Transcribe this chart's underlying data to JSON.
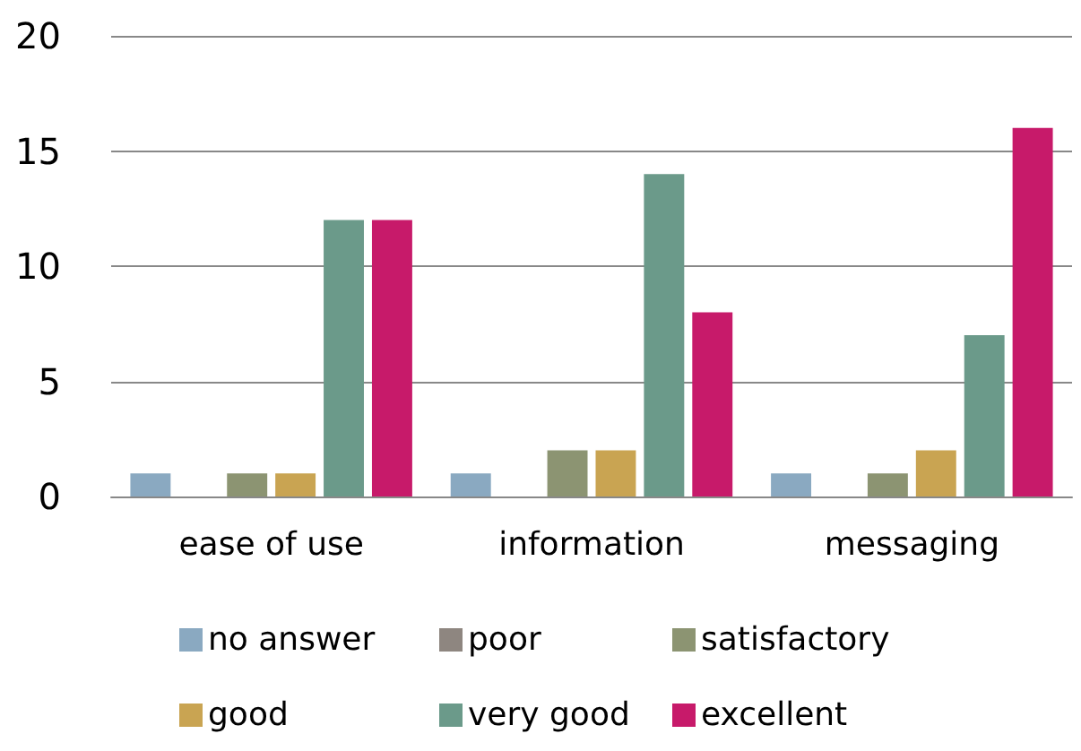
{
  "chart_data": {
    "type": "bar",
    "categories": [
      "ease of use",
      "information",
      "messaging"
    ],
    "series": [
      {
        "name": "no answer",
        "color": "#8aa9c1",
        "values": [
          1,
          1,
          1
        ]
      },
      {
        "name": "poor",
        "color": "#8e8680",
        "values": [
          0,
          0,
          0
        ]
      },
      {
        "name": "satisfactory",
        "color": "#8c9472",
        "values": [
          1,
          2,
          1
        ]
      },
      {
        "name": "good",
        "color": "#c9a452",
        "values": [
          1,
          2,
          2
        ]
      },
      {
        "name": "very good",
        "color": "#6b9a8a",
        "values": [
          12,
          14,
          7
        ]
      },
      {
        "name": "excellent",
        "color": "#c71a6a",
        "values": [
          12,
          8,
          16
        ]
      }
    ],
    "ylim": [
      0,
      20
    ],
    "yticks": [
      0,
      5,
      10,
      15,
      20
    ],
    "grid": "y",
    "legend": "bottom"
  }
}
